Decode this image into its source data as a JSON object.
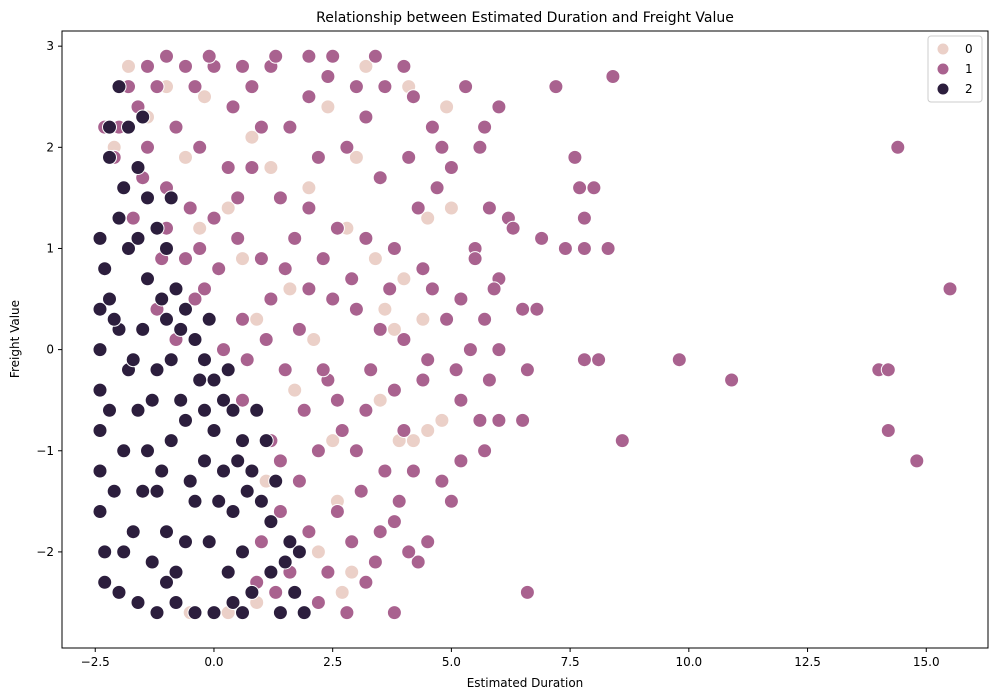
{
  "chart_data": {
    "type": "scatter",
    "title": "Relationship between Estimated Duration and Freight Value",
    "xlabel": "Estimated Duration",
    "ylabel": "Freight Value",
    "xlim": [
      -3.2,
      16.3
    ],
    "ylim": [
      -2.95,
      3.15
    ],
    "xticks": [
      -2.5,
      0.0,
      2.5,
      5.0,
      7.5,
      10.0,
      12.5,
      15.0
    ],
    "xtick_labels": [
      "−2.5",
      "0.0",
      "2.5",
      "5.0",
      "7.5",
      "10.0",
      "12.5",
      "15.0"
    ],
    "yticks": [
      -2,
      -1,
      0,
      1,
      2,
      3
    ],
    "ytick_labels": [
      "−2",
      "−1",
      "0",
      "1",
      "2",
      "3"
    ],
    "grid": false,
    "legend_position": "top-right",
    "series": [
      {
        "name": "0",
        "color": "#ebd0c8",
        "points": [
          [
            -1.8,
            2.8
          ],
          [
            -1.4,
            2.3
          ],
          [
            -1.0,
            2.6
          ],
          [
            -0.6,
            1.9
          ],
          [
            -0.2,
            2.5
          ],
          [
            0.3,
            1.4
          ],
          [
            0.8,
            2.1
          ],
          [
            1.2,
            1.8
          ],
          [
            1.6,
            0.6
          ],
          [
            2.0,
            1.6
          ],
          [
            2.4,
            2.4
          ],
          [
            2.8,
            1.2
          ],
          [
            3.2,
            2.8
          ],
          [
            3.6,
            0.4
          ],
          [
            4.1,
            2.6
          ],
          [
            4.5,
            1.3
          ],
          [
            4.9,
            2.4
          ],
          [
            5.0,
            1.4
          ],
          [
            4.8,
            -0.7
          ],
          [
            4.5,
            -0.8
          ],
          [
            4.2,
            -0.9
          ],
          [
            3.8,
            0.2
          ],
          [
            2.2,
            -2.0
          ],
          [
            2.7,
            -2.4
          ],
          [
            2.9,
            -2.2
          ],
          [
            0.9,
            -2.5
          ],
          [
            0.3,
            -2.6
          ],
          [
            -0.5,
            -2.6
          ],
          [
            1.1,
            -1.3
          ],
          [
            2.5,
            -0.9
          ],
          [
            3.5,
            -0.5
          ],
          [
            1.7,
            -0.4
          ],
          [
            0.6,
            0.9
          ],
          [
            -0.3,
            1.2
          ],
          [
            -1.9,
            1.6
          ],
          [
            -2.1,
            2.0
          ],
          [
            3.0,
            1.9
          ],
          [
            3.4,
            0.9
          ],
          [
            4.0,
            0.7
          ],
          [
            4.4,
            0.3
          ],
          [
            2.1,
            0.1
          ],
          [
            2.6,
            -1.5
          ],
          [
            3.9,
            -0.9
          ],
          [
            0.9,
            0.3
          ]
        ]
      },
      {
        "name": "1",
        "color": "#a9628f",
        "points": [
          [
            4.2,
            2.5
          ],
          [
            4.6,
            2.2
          ],
          [
            5.0,
            1.8
          ],
          [
            5.3,
            2.6
          ],
          [
            5.7,
            2.2
          ],
          [
            6.0,
            2.4
          ],
          [
            5.8,
            1.4
          ],
          [
            6.2,
            1.3
          ],
          [
            5.5,
            1.0
          ],
          [
            6.0,
            0.7
          ],
          [
            5.2,
            0.5
          ],
          [
            5.7,
            0.3
          ],
          [
            6.5,
            0.4
          ],
          [
            6.8,
            0.4
          ],
          [
            5.4,
            0.0
          ],
          [
            6.0,
            0.0
          ],
          [
            5.8,
            -0.3
          ],
          [
            5.2,
            -0.5
          ],
          [
            5.6,
            -0.7
          ],
          [
            6.0,
            -0.7
          ],
          [
            5.7,
            -1.0
          ],
          [
            6.5,
            -0.7
          ],
          [
            5.2,
            -1.1
          ],
          [
            4.8,
            -1.3
          ],
          [
            5.0,
            -1.5
          ],
          [
            4.5,
            -1.9
          ],
          [
            4.3,
            -2.1
          ],
          [
            3.8,
            -2.6
          ],
          [
            6.6,
            -2.4
          ],
          [
            6.6,
            -0.2
          ],
          [
            7.2,
            2.6
          ],
          [
            8.4,
            2.7
          ],
          [
            7.6,
            1.9
          ],
          [
            7.7,
            1.6
          ],
          [
            8.0,
            1.6
          ],
          [
            7.8,
            1.3
          ],
          [
            6.9,
            1.1
          ],
          [
            7.4,
            1.0
          ],
          [
            7.8,
            1.0
          ],
          [
            8.3,
            1.0
          ],
          [
            7.8,
            -0.1
          ],
          [
            8.1,
            -0.1
          ],
          [
            9.8,
            -0.1
          ],
          [
            10.9,
            -0.3
          ],
          [
            8.6,
            -0.9
          ],
          [
            14.0,
            -0.2
          ],
          [
            14.2,
            -0.2
          ],
          [
            14.2,
            -0.8
          ],
          [
            14.8,
            -1.1
          ],
          [
            15.5,
            0.6
          ],
          [
            14.4,
            2.0
          ],
          [
            4.0,
            2.8
          ],
          [
            3.6,
            2.6
          ],
          [
            3.2,
            2.3
          ],
          [
            2.8,
            2.0
          ],
          [
            2.4,
            2.7
          ],
          [
            2.0,
            2.5
          ],
          [
            1.6,
            2.2
          ],
          [
            1.2,
            2.8
          ],
          [
            0.8,
            2.6
          ],
          [
            0.4,
            2.4
          ],
          [
            0.0,
            2.8
          ],
          [
            -0.4,
            2.6
          ],
          [
            -0.8,
            2.2
          ],
          [
            -1.2,
            2.6
          ],
          [
            -1.6,
            2.4
          ],
          [
            -2.0,
            2.2
          ],
          [
            -2.3,
            2.2
          ],
          [
            -1.5,
            1.7
          ],
          [
            -1.0,
            1.6
          ],
          [
            -0.5,
            1.4
          ],
          [
            0.0,
            1.3
          ],
          [
            0.5,
            1.1
          ],
          [
            1.0,
            0.9
          ],
          [
            1.5,
            0.8
          ],
          [
            2.0,
            0.6
          ],
          [
            2.5,
            0.5
          ],
          [
            3.0,
            0.4
          ],
          [
            3.5,
            0.2
          ],
          [
            4.0,
            0.1
          ],
          [
            4.5,
            -0.1
          ],
          [
            3.8,
            -0.4
          ],
          [
            3.2,
            -0.6
          ],
          [
            2.7,
            -0.8
          ],
          [
            2.2,
            -1.0
          ],
          [
            1.8,
            -1.3
          ],
          [
            1.4,
            -1.6
          ],
          [
            1.0,
            -1.9
          ],
          [
            1.6,
            -2.2
          ],
          [
            2.2,
            -2.5
          ],
          [
            2.8,
            -2.6
          ],
          [
            3.2,
            -2.3
          ],
          [
            3.5,
            -1.8
          ],
          [
            3.9,
            -1.5
          ],
          [
            4.2,
            -1.2
          ],
          [
            3.0,
            -1.0
          ],
          [
            2.4,
            -0.3
          ],
          [
            1.8,
            0.2
          ],
          [
            1.2,
            0.5
          ],
          [
            0.6,
            0.3
          ],
          [
            0.2,
            0.0
          ],
          [
            -0.2,
            0.6
          ],
          [
            -0.6,
            0.9
          ],
          [
            -1.0,
            1.2
          ],
          [
            -1.4,
            2.0
          ],
          [
            -1.8,
            2.6
          ],
          [
            0.8,
            1.8
          ],
          [
            1.4,
            1.5
          ],
          [
            2.0,
            1.4
          ],
          [
            2.6,
            1.2
          ],
          [
            3.2,
            1.1
          ],
          [
            3.8,
            1.0
          ],
          [
            4.4,
            0.8
          ],
          [
            4.9,
            0.3
          ],
          [
            3.5,
            1.7
          ],
          [
            4.1,
            1.9
          ],
          [
            4.7,
            1.6
          ],
          [
            2.2,
            1.9
          ],
          [
            1.0,
            2.2
          ],
          [
            0.3,
            1.8
          ],
          [
            -0.3,
            2.0
          ],
          [
            -1.2,
            0.4
          ],
          [
            -0.8,
            0.1
          ],
          [
            0.6,
            -0.5
          ],
          [
            1.2,
            -0.9
          ],
          [
            2.6,
            -1.6
          ],
          [
            3.4,
            -2.1
          ],
          [
            2.9,
            -1.9
          ],
          [
            4.0,
            -0.8
          ],
          [
            3.6,
            -1.2
          ],
          [
            4.6,
            0.6
          ],
          [
            3.0,
            2.6
          ],
          [
            2.5,
            2.9
          ],
          [
            1.3,
            2.9
          ],
          [
            -0.1,
            2.9
          ],
          [
            -1.0,
            2.9
          ],
          [
            0.5,
            1.5
          ],
          [
            1.7,
            1.1
          ],
          [
            2.3,
            0.9
          ],
          [
            2.9,
            0.7
          ],
          [
            3.3,
            -0.2
          ],
          [
            2.6,
            -0.5
          ],
          [
            1.9,
            -0.6
          ],
          [
            1.5,
            -0.2
          ],
          [
            1.1,
            0.1
          ],
          [
            0.7,
            -0.1
          ],
          [
            1.4,
            -1.1
          ],
          [
            2.0,
            -1.8
          ],
          [
            1.3,
            -2.4
          ],
          [
            0.9,
            -2.3
          ],
          [
            2.4,
            -2.2
          ],
          [
            3.7,
            0.6
          ],
          [
            4.3,
            1.4
          ],
          [
            4.8,
            2.0
          ],
          [
            3.4,
            2.9
          ],
          [
            2.0,
            2.9
          ],
          [
            0.6,
            2.8
          ],
          [
            -0.6,
            2.8
          ],
          [
            -1.4,
            2.8
          ],
          [
            -2.1,
            1.9
          ],
          [
            -1.7,
            1.3
          ],
          [
            -1.1,
            0.9
          ],
          [
            -0.4,
            0.5
          ],
          [
            0.1,
            0.8
          ],
          [
            -0.3,
            1.0
          ],
          [
            3.1,
            -1.4
          ],
          [
            3.8,
            -1.7
          ],
          [
            4.1,
            -2.0
          ],
          [
            2.3,
            -0.2
          ],
          [
            4.4,
            -0.3
          ],
          [
            5.1,
            -0.2
          ],
          [
            5.5,
            0.9
          ],
          [
            5.9,
            0.6
          ],
          [
            6.3,
            1.2
          ],
          [
            5.6,
            2.0
          ]
        ]
      },
      {
        "name": "2",
        "color": "#2c1e3d",
        "points": [
          [
            -2.4,
            1.1
          ],
          [
            -2.2,
            1.9
          ],
          [
            -2.0,
            2.6
          ],
          [
            -1.8,
            2.2
          ],
          [
            -1.6,
            1.8
          ],
          [
            -1.4,
            1.5
          ],
          [
            -1.2,
            1.2
          ],
          [
            -1.0,
            1.0
          ],
          [
            -0.8,
            0.6
          ],
          [
            -0.6,
            0.4
          ],
          [
            -0.4,
            0.1
          ],
          [
            -0.2,
            -0.1
          ],
          [
            0.0,
            -0.3
          ],
          [
            0.2,
            -0.5
          ],
          [
            0.4,
            -0.6
          ],
          [
            0.6,
            -0.9
          ],
          [
            0.8,
            -1.2
          ],
          [
            1.0,
            -1.5
          ],
          [
            1.2,
            -1.7
          ],
          [
            1.5,
            -2.1
          ],
          [
            1.7,
            -2.4
          ],
          [
            1.9,
            -2.6
          ],
          [
            1.2,
            -2.2
          ],
          [
            0.8,
            -2.4
          ],
          [
            0.4,
            -2.5
          ],
          [
            0.0,
            -2.6
          ],
          [
            -0.4,
            -2.6
          ],
          [
            -0.8,
            -2.5
          ],
          [
            -1.2,
            -2.6
          ],
          [
            -1.6,
            -2.5
          ],
          [
            -2.0,
            -2.4
          ],
          [
            -2.3,
            -2.0
          ],
          [
            -2.4,
            -1.6
          ],
          [
            -2.4,
            -1.2
          ],
          [
            -2.4,
            -0.8
          ],
          [
            -2.4,
            -0.4
          ],
          [
            -2.4,
            0.0
          ],
          [
            -2.4,
            0.4
          ],
          [
            -2.3,
            0.8
          ],
          [
            -2.2,
            0.5
          ],
          [
            -2.0,
            0.2
          ],
          [
            -1.8,
            -0.2
          ],
          [
            -1.6,
            -0.6
          ],
          [
            -1.4,
            -1.0
          ],
          [
            -1.2,
            -1.4
          ],
          [
            -1.0,
            -1.8
          ],
          [
            -0.8,
            -2.2
          ],
          [
            -0.6,
            -1.9
          ],
          [
            -0.4,
            -1.5
          ],
          [
            -0.2,
            -1.1
          ],
          [
            0.0,
            -0.8
          ],
          [
            0.2,
            -1.2
          ],
          [
            0.4,
            -1.6
          ],
          [
            0.6,
            -2.0
          ],
          [
            0.3,
            -2.2
          ],
          [
            -0.1,
            -1.9
          ],
          [
            -0.5,
            -1.3
          ],
          [
            -0.9,
            -0.9
          ],
          [
            -1.3,
            -0.5
          ],
          [
            -1.7,
            -0.1
          ],
          [
            -2.1,
            0.3
          ],
          [
            -2.2,
            -0.6
          ],
          [
            -1.9,
            -1.0
          ],
          [
            -1.5,
            -1.4
          ],
          [
            -1.1,
            -1.2
          ],
          [
            -0.7,
            -0.5
          ],
          [
            -0.3,
            -0.3
          ],
          [
            -1.0,
            0.3
          ],
          [
            -1.4,
            0.7
          ],
          [
            -1.8,
            1.0
          ],
          [
            -1.5,
            0.2
          ],
          [
            -1.2,
            -0.2
          ],
          [
            -0.9,
            -0.1
          ],
          [
            -0.6,
            -0.7
          ],
          [
            -0.2,
            -0.6
          ],
          [
            0.1,
            -1.5
          ],
          [
            0.5,
            -1.1
          ],
          [
            0.9,
            -0.6
          ],
          [
            1.1,
            -0.9
          ],
          [
            1.3,
            -1.3
          ],
          [
            0.7,
            -1.4
          ],
          [
            1.6,
            -1.9
          ],
          [
            -2.1,
            -1.4
          ],
          [
            -1.7,
            -1.8
          ],
          [
            -1.3,
            -2.1
          ],
          [
            -2.3,
            -2.3
          ],
          [
            -1.9,
            -2.0
          ],
          [
            -0.9,
            1.5
          ],
          [
            -1.1,
            0.5
          ],
          [
            -1.6,
            1.1
          ],
          [
            -2.0,
            1.3
          ],
          [
            -2.2,
            2.2
          ],
          [
            -1.9,
            1.6
          ],
          [
            -1.5,
            2.3
          ],
          [
            -0.7,
            0.2
          ],
          [
            -0.1,
            0.3
          ],
          [
            0.3,
            -0.2
          ],
          [
            -1.0,
            -2.3
          ],
          [
            0.6,
            -2.6
          ],
          [
            1.4,
            -2.6
          ],
          [
            1.8,
            -2.0
          ]
        ]
      }
    ]
  }
}
